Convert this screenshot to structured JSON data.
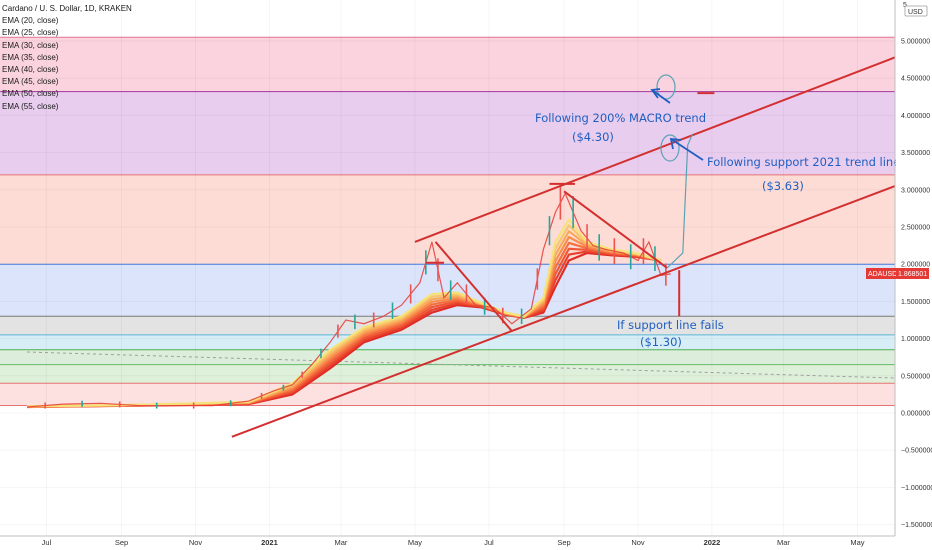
{
  "header": {
    "title": "Cardano / U. S. Dollar, 1D, KRAKEN",
    "indicators": [
      "EMA (20, close)",
      "EMA (25, close)",
      "EMA (30, close)",
      "EMA (35, close)",
      "EMA (40, close)",
      "EMA (45, close)",
      "EMA (50, close)",
      "EMA (55, close)"
    ]
  },
  "price_scale": {
    "currency_top": "5",
    "currency_unit": "USD"
  },
  "ticker": {
    "symbol": "ADAUSD",
    "price": "1.868501"
  },
  "annotations": {
    "macro_label": "Following 200% MACRO trend",
    "macro_value": "($4.30)",
    "support_label": "Following support 2021 trend line",
    "support_value": "($3.63)",
    "fail_label": "If support line fails",
    "fail_value": "($1.30)"
  },
  "chart_data": {
    "type": "line",
    "title": "Cardano / U. S. Dollar, 1D, KRAKEN",
    "ylabel": "USD",
    "ylim": [
      -1.55,
      5.1
    ],
    "y_ticks": [
      -1.5,
      -1.0,
      -0.5,
      0.0,
      0.5,
      1.0,
      1.5,
      2.0,
      2.5,
      3.0,
      3.5,
      4.0,
      4.5,
      5.0
    ],
    "y_tick_labels": [
      "−1.500000",
      "−1.000000",
      "−0.500000",
      "0.000000",
      "0.500000",
      "1.000000",
      "1.500000",
      "2.000000",
      "2.500000",
      "3.000000",
      "3.500000",
      "4.000000",
      "4.500000",
      "5.000000"
    ],
    "x_ticks": [
      "Jul",
      "Sep",
      "Nov",
      "2021",
      "Mar",
      "May",
      "Jul",
      "Sep",
      "Nov",
      "2022",
      "Mar",
      "May"
    ],
    "x_tick_dates": [
      "2020-07-01",
      "2020-09-01",
      "2020-11-01",
      "2021-01-01",
      "2021-03-01",
      "2021-05-01",
      "2021-07-01",
      "2021-09-01",
      "2021-11-01",
      "2022-01-01",
      "2022-03-01",
      "2022-05-01"
    ],
    "grid": true,
    "price_series": {
      "name": "ADAUSD",
      "color": "#e53935",
      "x": [
        "2020-06-15",
        "2020-07-15",
        "2020-08-15",
        "2020-09-15",
        "2020-10-15",
        "2020-11-15",
        "2020-12-15",
        "2021-01-05",
        "2021-01-20",
        "2021-02-05",
        "2021-02-20",
        "2021-03-05",
        "2021-03-20",
        "2021-04-05",
        "2021-04-20",
        "2021-05-05",
        "2021-05-15",
        "2021-05-25",
        "2021-06-05",
        "2021-06-20",
        "2021-07-05",
        "2021-07-20",
        "2021-08-05",
        "2021-08-15",
        "2021-08-25",
        "2021-09-02",
        "2021-09-15",
        "2021-09-25",
        "2021-10-05",
        "2021-10-20",
        "2021-11-01",
        "2021-11-10",
        "2021-11-20",
        "2021-11-28"
      ],
      "y": [
        0.08,
        0.12,
        0.13,
        0.1,
        0.1,
        0.1,
        0.16,
        0.3,
        0.38,
        0.65,
        0.95,
        1.25,
        1.2,
        1.3,
        1.45,
        1.75,
        2.3,
        1.55,
        1.75,
        1.45,
        1.42,
        1.2,
        1.4,
        2.2,
        2.7,
        2.95,
        2.45,
        2.25,
        2.2,
        2.15,
        2.05,
        2.3,
        1.85,
        1.87
      ]
    },
    "ema_colors": [
      "#f6e27a",
      "#f7c66a",
      "#f8a95a",
      "#f88d4d",
      "#f57040",
      "#ef5735",
      "#e9402c",
      "#e02b24"
    ],
    "ema_series": [
      {
        "name": "EMA (20, close)",
        "x": [
          "2020-06-15",
          "2020-09-15",
          "2020-12-15",
          "2021-01-20",
          "2021-02-20",
          "2021-03-20",
          "2021-04-20",
          "2021-05-15",
          "2021-06-05",
          "2021-06-25",
          "2021-07-15",
          "2021-07-30",
          "2021-08-15",
          "2021-08-25",
          "2021-09-05",
          "2021-09-20",
          "2021-10-10",
          "2021-10-30",
          "2021-11-20"
        ],
        "y": [
          0.09,
          0.11,
          0.15,
          0.4,
          0.85,
          1.15,
          1.3,
          1.6,
          1.62,
          1.48,
          1.35,
          1.3,
          1.55,
          2.3,
          2.6,
          2.3,
          2.2,
          2.15,
          2.05
        ]
      },
      {
        "name": "EMA (55, close)",
        "x": [
          "2020-06-15",
          "2020-09-15",
          "2020-12-15",
          "2021-01-20",
          "2021-02-20",
          "2021-03-20",
          "2021-04-20",
          "2021-05-15",
          "2021-06-05",
          "2021-06-25",
          "2021-07-15",
          "2021-07-30",
          "2021-08-15",
          "2021-08-25",
          "2021-09-05",
          "2021-09-20",
          "2021-10-10",
          "2021-10-30",
          "2021-11-20"
        ],
        "y": [
          0.08,
          0.1,
          0.12,
          0.25,
          0.6,
          0.95,
          1.12,
          1.35,
          1.45,
          1.42,
          1.32,
          1.28,
          1.35,
          1.7,
          2.05,
          2.15,
          2.12,
          2.1,
          2.05
        ]
      }
    ],
    "trend_lines": [
      {
        "name": "upper-channel",
        "color": "#d32f2f",
        "x": [
          "2021-05-01",
          "2022-06-01"
        ],
        "y": [
          2.3,
          4.78
        ]
      },
      {
        "name": "lower-support",
        "color": "#d32f2f",
        "x": [
          "2020-12-01",
          "2022-06-01"
        ],
        "y": [
          -0.32,
          3.05
        ]
      },
      {
        "name": "may-fall",
        "color": "#d32f2f",
        "x": [
          "2021-05-18",
          "2021-07-20"
        ],
        "y": [
          2.3,
          1.1
        ]
      },
      {
        "name": "sep-fall",
        "color": "#d32f2f",
        "x": [
          "2021-09-01",
          "2021-11-25"
        ],
        "y": [
          2.98,
          1.95
        ]
      },
      {
        "name": "may-top",
        "color": "#d32f2f",
        "x": [
          "2021-05-10",
          "2021-05-25"
        ],
        "y": [
          2.02,
          2.02
        ]
      },
      {
        "name": "sep-top",
        "color": "#d32f2f",
        "x": [
          "2021-08-20",
          "2021-09-10"
        ],
        "y": [
          3.08,
          3.08
        ]
      },
      {
        "name": "macro-target",
        "color": "#d32f2f",
        "x": [
          "2021-12-20",
          "2022-01-03"
        ],
        "y": [
          4.3,
          4.3
        ]
      },
      {
        "name": "drop-line",
        "color": "#d32f2f",
        "x": [
          "2021-12-05",
          "2021-12-05"
        ],
        "y": [
          1.92,
          1.3
        ]
      }
    ],
    "projection_path": {
      "color": "#5aa3b5",
      "x": [
        "2021-11-25",
        "2021-12-08",
        "2021-12-10",
        "2021-12-12",
        "2021-12-16"
      ],
      "y": [
        1.95,
        2.15,
        2.9,
        3.6,
        3.75
      ]
    },
    "bands": [
      {
        "from": 4.32,
        "to": 5.05,
        "color": "#fad3de"
      },
      {
        "from": 3.2,
        "to": 4.32,
        "color": "#e9cdef"
      },
      {
        "from": 2.0,
        "to": 3.2,
        "color": "#fddcd6"
      },
      {
        "from": 1.3,
        "to": 2.0,
        "color": "#dbe4fb"
      },
      {
        "from": 1.05,
        "to": 1.3,
        "color": "#e3e3e3"
      },
      {
        "from": 0.85,
        "to": 1.05,
        "color": "#d8eef7"
      },
      {
        "from": 0.65,
        "to": 0.85,
        "color": "#dceedb"
      },
      {
        "from": 0.4,
        "to": 0.65,
        "color": "#dff0da"
      },
      {
        "from": 0.1,
        "to": 0.4,
        "color": "#fde0e0"
      }
    ],
    "band_lines": [
      {
        "y": 5.05,
        "color": "#e57393"
      },
      {
        "y": 4.32,
        "color": "#a0399c"
      },
      {
        "y": 3.2,
        "color": "#e57373"
      },
      {
        "y": 2.0,
        "color": "#4a7fe0"
      },
      {
        "y": 1.3,
        "color": "#7a7a7a"
      },
      {
        "y": 1.05,
        "color": "#5bb5d4"
      },
      {
        "y": 0.85,
        "color": "#4caf50"
      },
      {
        "y": 0.65,
        "color": "#66bb6a"
      },
      {
        "y": 0.4,
        "color": "#e57373"
      },
      {
        "y": 0.1,
        "color": "#e57373"
      }
    ],
    "dashed_line": {
      "color": "#9e9e9e",
      "x": [
        "2020-06-15",
        "2022-06-01"
      ],
      "y": [
        0.82,
        0.47
      ]
    }
  }
}
